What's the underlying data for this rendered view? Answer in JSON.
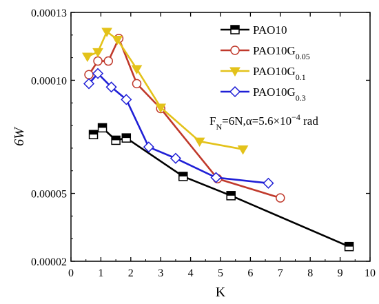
{
  "chart_data": {
    "type": "line",
    "xlabel": "K",
    "ylabel": "6W",
    "xlim": [
      0,
      10
    ],
    "ylim": [
      2e-05,
      0.00013
    ],
    "x_ticks": [
      0,
      1,
      2,
      3,
      4,
      5,
      6,
      7,
      8,
      9,
      10
    ],
    "y_ticks": [
      {
        "value": 2e-05,
        "label": "0.00002"
      },
      {
        "value": 5e-05,
        "label": "0.00005"
      },
      {
        "value": 0.0001,
        "label": "0.00010"
      },
      {
        "value": 0.00013,
        "label": "0.00013"
      }
    ],
    "grid": false,
    "legend_position": "top-right",
    "series": [
      {
        "name": "PAO10",
        "name_sub": "",
        "color": "#000000",
        "marker": "square-half",
        "points": [
          [
            0.75,
            7.6e-05
          ],
          [
            1.05,
            7.9e-05
          ],
          [
            1.5,
            7.35e-05
          ],
          [
            1.85,
            7.45e-05
          ],
          [
            3.75,
            5.75e-05
          ],
          [
            5.35,
            4.9e-05
          ],
          [
            9.3,
            2.65e-05
          ]
        ]
      },
      {
        "name": "PAO10G",
        "name_sub": "0.05",
        "color": "#c0392b",
        "marker": "circle",
        "points": [
          [
            0.6,
            0.0001025
          ],
          [
            0.9,
            0.0001085
          ],
          [
            1.25,
            0.0001085
          ],
          [
            1.6,
            0.0001185
          ],
          [
            2.2,
            9.85e-05
          ],
          [
            3.0,
            8.75e-05
          ],
          [
            4.9,
            5.65e-05
          ],
          [
            7.0,
            4.8e-05
          ]
        ]
      },
      {
        "name": "PAO10G",
        "name_sub": "0.1",
        "color": "#e3c21a",
        "marker": "triangle-down",
        "points": [
          [
            0.55,
            0.0001105
          ],
          [
            0.9,
            0.0001125
          ],
          [
            1.2,
            0.0001215
          ],
          [
            1.55,
            0.000118
          ],
          [
            2.2,
            0.000105
          ],
          [
            3.0,
            8.8e-05
          ],
          [
            4.3,
            7.3e-05
          ],
          [
            5.75,
            6.95e-05
          ]
        ]
      },
      {
        "name": "PAO10G",
        "name_sub": "0.3",
        "color": "#1f1fd6",
        "marker": "diamond",
        "points": [
          [
            0.6,
            9.85e-05
          ],
          [
            0.9,
            0.000103
          ],
          [
            1.35,
            9.7e-05
          ],
          [
            1.85,
            9.15e-05
          ],
          [
            2.6,
            7.05e-05
          ],
          [
            3.5,
            6.55e-05
          ],
          [
            4.85,
            5.7e-05
          ],
          [
            6.6,
            5.45e-05
          ]
        ]
      }
    ],
    "annotation": {
      "parts": [
        {
          "text": "F",
          "shift": "none"
        },
        {
          "text": "N",
          "shift": "sub"
        },
        {
          "text": "=6N,α=5.6×10",
          "shift": "none"
        },
        {
          "text": "−4",
          "shift": "super"
        },
        {
          "text": " rad",
          "shift": "none"
        }
      ]
    }
  }
}
